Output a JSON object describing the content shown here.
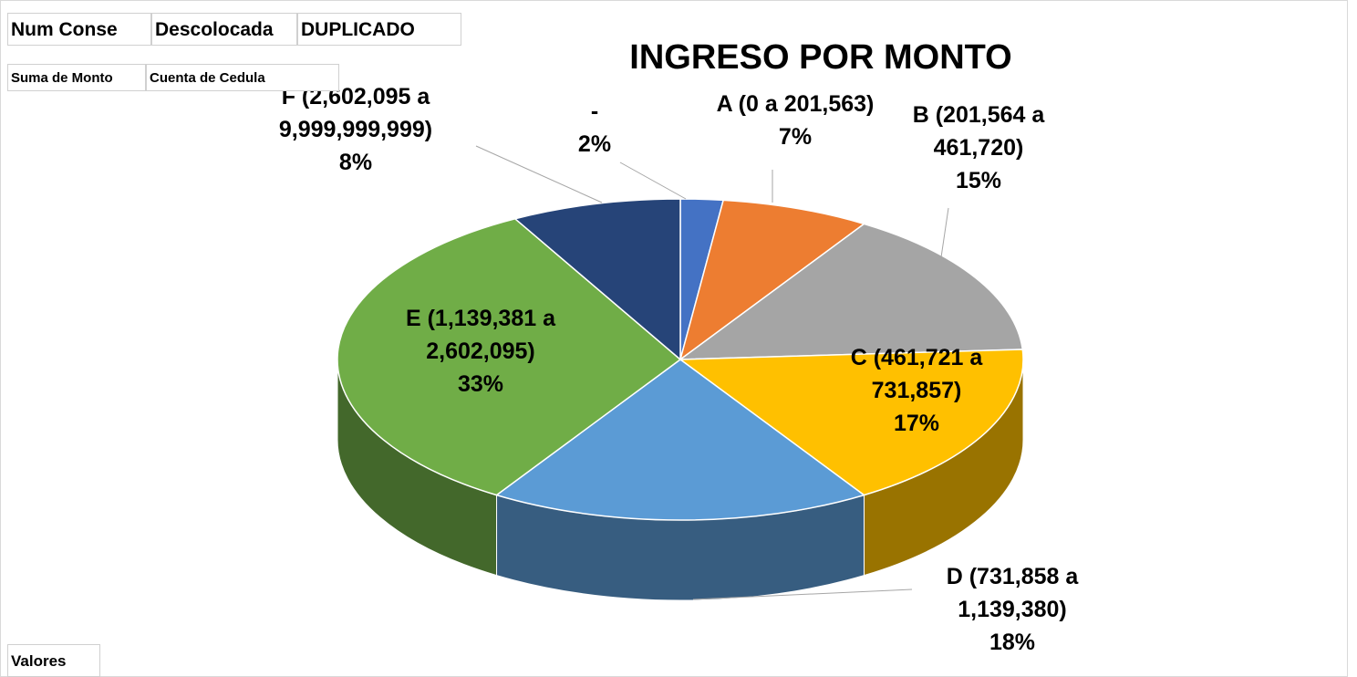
{
  "chart_data": {
    "type": "pie",
    "title": "INGRESO POR MONTO",
    "categories": [
      "-",
      "A (0 a 201,563)",
      "B (201,564 a 461,720)",
      "C (461,721 a 731,857)",
      "D (731,858 a 1,139,380)",
      "E (1,139,381 a 2,602,095)",
      "F (2,602,095 a 9,999,999,999)"
    ],
    "values": [
      2,
      7,
      15,
      17,
      18,
      33,
      8
    ],
    "value_labels": [
      "2%",
      "7%",
      "15%",
      "17%",
      "18%",
      "33%",
      "8%"
    ],
    "colors": [
      "#4472c4",
      "#ed7d31",
      "#a5a5a5",
      "#ffc000",
      "#5b9bd5",
      "#70ad47",
      "#264478"
    ]
  },
  "pivot_buttons": {
    "filters": [
      "Num Conse",
      "Descolocada",
      "DUPLICADO"
    ],
    "values": [
      "Suma de Monto",
      "Cuenta de Cedula"
    ],
    "axis": "Valores"
  }
}
